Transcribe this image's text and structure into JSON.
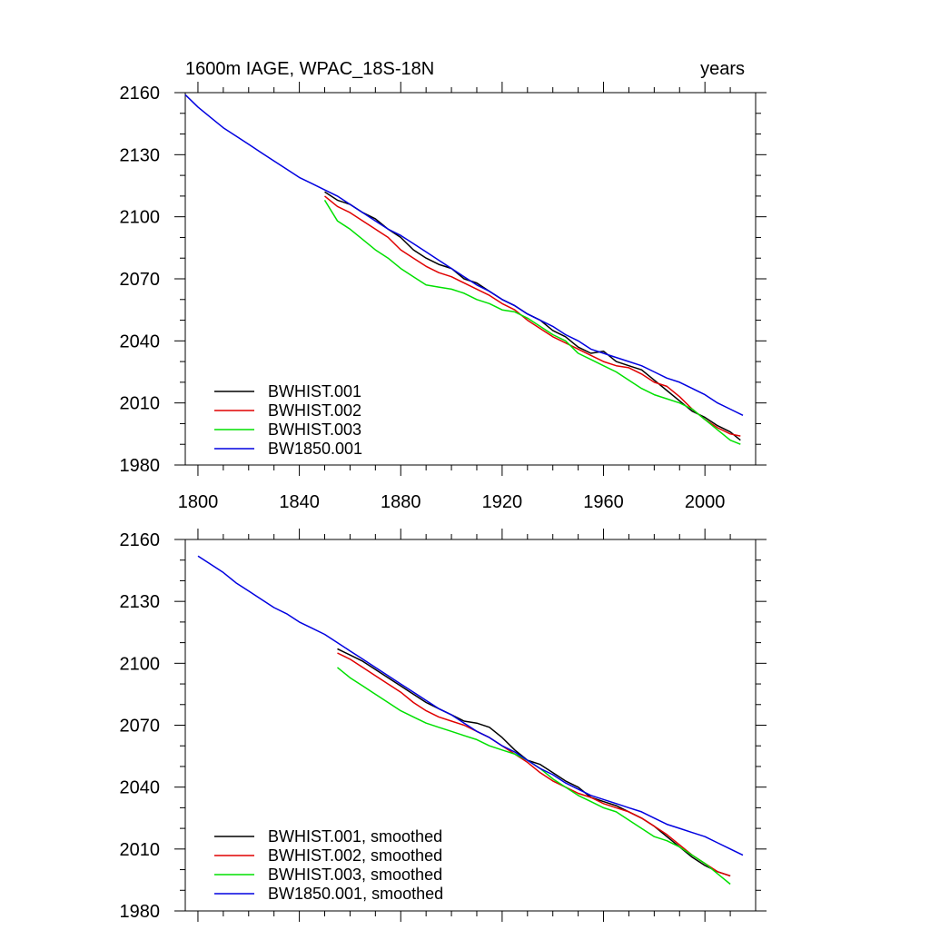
{
  "chart_data": [
    {
      "type": "line",
      "title": "1600m IAGE, WPAC_18S-18N",
      "units": "years",
      "xlim": [
        1795,
        2020
      ],
      "ylim": [
        1980,
        2160
      ],
      "xticks": [
        1800,
        1840,
        1880,
        1920,
        1960,
        2000
      ],
      "yticks": [
        1980,
        2010,
        2040,
        2070,
        2100,
        2130,
        2160
      ],
      "xtick_labels": [
        "1800",
        "1840",
        "1880",
        "1920",
        "1960",
        "2000"
      ],
      "ytick_labels": [
        "1980",
        "2010",
        "2040",
        "2070",
        "2100",
        "2130",
        "2160"
      ],
      "show_xtick_labels": true,
      "legend_position": "bottom-left",
      "series": [
        {
          "name": "BWHIST.001",
          "color": "#000000",
          "x": [
            1850,
            1855,
            1860,
            1865,
            1870,
            1875,
            1880,
            1885,
            1890,
            1895,
            1900,
            1905,
            1910,
            1915,
            1920,
            1925,
            1930,
            1935,
            1940,
            1945,
            1950,
            1955,
            1960,
            1965,
            1970,
            1975,
            1980,
            1985,
            1990,
            1995,
            2000,
            2005,
            2010,
            2014
          ],
          "y": [
            2112,
            2108,
            2106,
            2102,
            2099,
            2094,
            2090,
            2084,
            2080,
            2077,
            2075,
            2070,
            2068,
            2064,
            2060,
            2057,
            2053,
            2050,
            2045,
            2042,
            2037,
            2034,
            2035,
            2030,
            2028,
            2026,
            2021,
            2016,
            2011,
            2006,
            2003,
            1999,
            1996,
            1992
          ]
        },
        {
          "name": "BWHIST.002",
          "color": "#e00000",
          "x": [
            1850,
            1855,
            1860,
            1865,
            1870,
            1875,
            1880,
            1885,
            1890,
            1895,
            1900,
            1905,
            1910,
            1915,
            1920,
            1925,
            1930,
            1935,
            1940,
            1945,
            1950,
            1955,
            1960,
            1965,
            1970,
            1975,
            1980,
            1985,
            1990,
            1995,
            2000,
            2005,
            2010,
            2014
          ],
          "y": [
            2110,
            2105,
            2102,
            2098,
            2094,
            2090,
            2084,
            2080,
            2076,
            2073,
            2071,
            2068,
            2065,
            2062,
            2058,
            2055,
            2050,
            2046,
            2042,
            2039,
            2036,
            2033,
            2030,
            2028,
            2027,
            2024,
            2020,
            2018,
            2013,
            2007,
            2002,
            1998,
            1995,
            1994
          ]
        },
        {
          "name": "BWHIST.003",
          "color": "#00e000",
          "x": [
            1850,
            1855,
            1860,
            1865,
            1870,
            1875,
            1880,
            1885,
            1890,
            1895,
            1900,
            1905,
            1910,
            1915,
            1920,
            1925,
            1930,
            1935,
            1940,
            1945,
            1950,
            1955,
            1960,
            1965,
            1970,
            1975,
            1980,
            1985,
            1990,
            1995,
            2000,
            2005,
            2010,
            2014
          ],
          "y": [
            2108,
            2098,
            2094,
            2089,
            2084,
            2080,
            2075,
            2071,
            2067,
            2066,
            2065,
            2063,
            2060,
            2058,
            2055,
            2054,
            2051,
            2047,
            2043,
            2040,
            2034,
            2031,
            2028,
            2025,
            2021,
            2017,
            2014,
            2012,
            2010,
            2007,
            2002,
            1997,
            1992,
            1990
          ]
        },
        {
          "name": "BW1850.001",
          "color": "#0000e0",
          "x": [
            1795,
            1800,
            1805,
            1810,
            1815,
            1820,
            1825,
            1830,
            1835,
            1840,
            1845,
            1850,
            1855,
            1860,
            1865,
            1870,
            1875,
            1880,
            1885,
            1890,
            1895,
            1900,
            1905,
            1910,
            1915,
            1920,
            1925,
            1930,
            1935,
            1940,
            1945,
            1950,
            1955,
            1960,
            1965,
            1970,
            1975,
            1980,
            1985,
            1990,
            1995,
            2000,
            2005,
            2010,
            2015
          ],
          "y": [
            2159,
            2153,
            2148,
            2143,
            2139,
            2135,
            2131,
            2127,
            2123,
            2119,
            2116,
            2113,
            2110,
            2106,
            2102,
            2098,
            2094,
            2091,
            2087,
            2083,
            2079,
            2075,
            2071,
            2067,
            2064,
            2060,
            2057,
            2053,
            2050,
            2047,
            2043,
            2040,
            2036,
            2034,
            2032,
            2030,
            2028,
            2025,
            2022,
            2020,
            2017,
            2014,
            2010,
            2007,
            2004
          ]
        }
      ]
    },
    {
      "type": "line",
      "title": "",
      "units": "",
      "xlim": [
        1795,
        2020
      ],
      "ylim": [
        1980,
        2160
      ],
      "xticks": [
        1800,
        1840,
        1880,
        1920,
        1960,
        2000
      ],
      "yticks": [
        1980,
        2010,
        2040,
        2070,
        2100,
        2130,
        2160
      ],
      "xtick_labels": [],
      "ytick_labels": [
        "1980",
        "2010",
        "2040",
        "2070",
        "2100",
        "2130",
        "2160"
      ],
      "show_xtick_labels": false,
      "legend_position": "bottom-left",
      "series": [
        {
          "name": "BWHIST.001, smoothed",
          "color": "#000000",
          "x": [
            1855,
            1860,
            1865,
            1870,
            1875,
            1880,
            1885,
            1890,
            1895,
            1900,
            1905,
            1910,
            1915,
            1920,
            1925,
            1930,
            1935,
            1940,
            1945,
            1950,
            1955,
            1960,
            1965,
            1970,
            1975,
            1980,
            1985,
            1990,
            1995,
            2000,
            2005,
            2010
          ],
          "y": [
            2107,
            2104,
            2101,
            2097,
            2093,
            2089,
            2085,
            2081,
            2078,
            2075,
            2072,
            2071,
            2069,
            2064,
            2058,
            2053,
            2051,
            2047,
            2043,
            2040,
            2035,
            2033,
            2031,
            2028,
            2025,
            2021,
            2016,
            2011,
            2006,
            2002,
            1999,
            1997
          ]
        },
        {
          "name": "BWHIST.002, smoothed",
          "color": "#e00000",
          "x": [
            1855,
            1860,
            1865,
            1870,
            1875,
            1880,
            1885,
            1890,
            1895,
            1900,
            1905,
            1910,
            1915,
            1920,
            1925,
            1930,
            1935,
            1940,
            1945,
            1950,
            1955,
            1960,
            1965,
            1970,
            1975,
            1980,
            1985,
            1990,
            1995,
            2000,
            2005,
            2010
          ],
          "y": [
            2105,
            2102,
            2098,
            2094,
            2090,
            2086,
            2081,
            2077,
            2074,
            2072,
            2070,
            2067,
            2064,
            2060,
            2056,
            2052,
            2047,
            2043,
            2040,
            2037,
            2035,
            2032,
            2030,
            2028,
            2025,
            2021,
            2017,
            2012,
            2007,
            2003,
            1999,
            1997
          ]
        },
        {
          "name": "BWHIST.003, smoothed",
          "color": "#00e000",
          "x": [
            1855,
            1860,
            1865,
            1870,
            1875,
            1880,
            1885,
            1890,
            1895,
            1900,
            1905,
            1910,
            1915,
            1920,
            1925,
            1930,
            1935,
            1940,
            1945,
            1950,
            1955,
            1960,
            1965,
            1970,
            1975,
            1980,
            1985,
            1990,
            1995,
            2000,
            2005,
            2010
          ],
          "y": [
            2098,
            2093,
            2089,
            2085,
            2081,
            2077,
            2074,
            2071,
            2069,
            2067,
            2065,
            2063,
            2060,
            2058,
            2056,
            2053,
            2049,
            2044,
            2040,
            2036,
            2033,
            2030,
            2028,
            2024,
            2020,
            2016,
            2014,
            2011,
            2007,
            2003,
            1998,
            1993
          ]
        },
        {
          "name": "BW1850.001, smoothed",
          "color": "#0000e0",
          "x": [
            1800,
            1805,
            1810,
            1815,
            1820,
            1825,
            1830,
            1835,
            1840,
            1845,
            1850,
            1855,
            1860,
            1865,
            1870,
            1875,
            1880,
            1885,
            1890,
            1895,
            1900,
            1905,
            1910,
            1915,
            1920,
            1925,
            1930,
            1935,
            1940,
            1945,
            1950,
            1955,
            1960,
            1965,
            1970,
            1975,
            1980,
            1985,
            1990,
            1995,
            2000,
            2005,
            2010,
            2015
          ],
          "y": [
            2152,
            2148,
            2144,
            2139,
            2135,
            2131,
            2127,
            2124,
            2120,
            2117,
            2114,
            2110,
            2106,
            2102,
            2098,
            2094,
            2090,
            2086,
            2082,
            2078,
            2075,
            2071,
            2067,
            2064,
            2060,
            2057,
            2053,
            2049,
            2046,
            2042,
            2039,
            2036,
            2034,
            2032,
            2030,
            2028,
            2025,
            2022,
            2020,
            2018,
            2016,
            2013,
            2010,
            2007
          ]
        }
      ]
    }
  ]
}
